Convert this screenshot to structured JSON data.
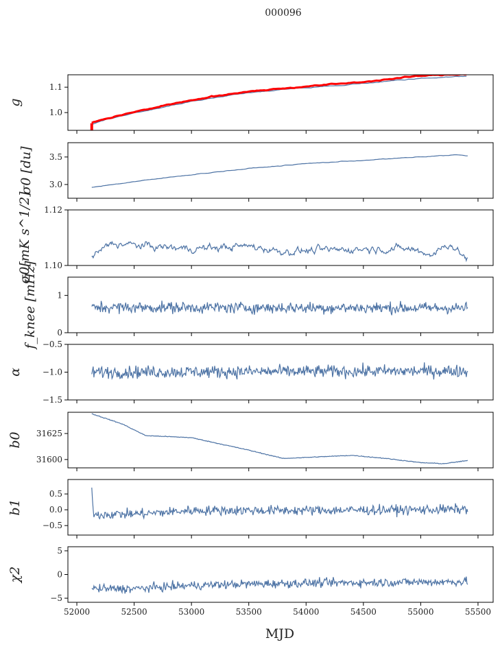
{
  "chart_data": {
    "type": "line",
    "title": "000096",
    "xlabel": "MJD",
    "xlim": [
      51922,
      55632
    ],
    "xticks": [
      52000,
      52500,
      53000,
      53500,
      54000,
      54500,
      55000,
      55500
    ],
    "xtick_labels": [
      "52000",
      "52500",
      "53000",
      "53500",
      "54000",
      "54500",
      "55000",
      "55500"
    ],
    "line_color": "#4c72a4",
    "highlight_color": "#ff0000",
    "panels": [
      {
        "ylabel": "g",
        "ylim": [
          0.93,
          1.149
        ],
        "yticks": [
          1.0,
          1.1
        ],
        "ytick_labels": [
          "1.0",
          "1.1"
        ],
        "series": [
          {
            "name": "g",
            "color": "#4c72a4",
            "noise": 0.0015,
            "trend": [
              [
                52130,
                0.952
              ],
              [
                52200,
                0.965
              ],
              [
                52500,
                0.998
              ],
              [
                53000,
                1.044
              ],
              [
                53500,
                1.079
              ],
              [
                54000,
                1.098
              ],
              [
                54500,
                1.115
              ],
              [
                55000,
                1.136
              ],
              [
                55400,
                1.143
              ]
            ]
          },
          {
            "name": "g-fit",
            "color": "#ff0000",
            "noise": 0.002,
            "trend": [
              [
                52130,
                0.958
              ],
              [
                52200,
                0.97
              ],
              [
                52500,
                1.003
              ],
              [
                53000,
                1.049
              ],
              [
                53500,
                1.084
              ],
              [
                54000,
                1.103
              ],
              [
                54500,
                1.121
              ],
              [
                55000,
                1.145
              ],
              [
                55400,
                1.152
              ]
            ]
          }
        ]
      },
      {
        "ylabel": "σ0 [du]",
        "ylim": [
          2.75,
          3.76
        ],
        "yticks": [
          3.0,
          3.5
        ],
        "ytick_labels": [
          "3.0",
          "3.5"
        ],
        "series": [
          {
            "name": "sigma0-du",
            "noise": 0.006,
            "trend": [
              [
                52130,
                2.95
              ],
              [
                52500,
                3.05
              ],
              [
                53000,
                3.18
              ],
              [
                53500,
                3.29
              ],
              [
                54000,
                3.38
              ],
              [
                54500,
                3.44
              ],
              [
                55000,
                3.5
              ],
              [
                55300,
                3.54
              ],
              [
                55410,
                3.52
              ]
            ]
          }
        ]
      },
      {
        "ylabel": "σ0[mK s^1/2]",
        "ylim": [
          1.1,
          1.12
        ],
        "yticks": [
          1.1,
          1.12
        ],
        "ytick_labels": [
          "1.10",
          "1.12"
        ],
        "series": [
          {
            "name": "sigma0-mK",
            "noise": 0.0012,
            "trend": [
              [
                52130,
                1.103
              ],
              [
                52300,
                1.108
              ],
              [
                52600,
                1.107
              ],
              [
                53000,
                1.106
              ],
              [
                53500,
                1.107
              ],
              [
                53800,
                1.105
              ],
              [
                54500,
                1.106
              ],
              [
                54900,
                1.106
              ],
              [
                55100,
                1.104
              ],
              [
                55250,
                1.108
              ],
              [
                55410,
                1.102
              ]
            ]
          }
        ]
      },
      {
        "ylabel": "f_knee [mHz]",
        "ylim": [
          0,
          1.49
        ],
        "yticks": [
          0,
          1
        ],
        "ytick_labels": [
          "0",
          "1"
        ],
        "series": [
          {
            "name": "fknee",
            "noise": 0.11,
            "trend": [
              [
                52130,
                0.68
              ],
              [
                55410,
                0.66
              ]
            ]
          }
        ]
      },
      {
        "ylabel": "α",
        "ylim": [
          -1.5,
          -0.5
        ],
        "yticks": [
          -1.5,
          -1.0,
          -0.5
        ],
        "ytick_labels": [
          "−1.5",
          "−1.0",
          "−0.5"
        ],
        "series": [
          {
            "name": "alpha",
            "noise": 0.08,
            "trend": [
              [
                52130,
                -1.0
              ],
              [
                55410,
                -0.98
              ]
            ]
          }
        ]
      },
      {
        "ylabel": "b0",
        "ylim": [
          31592,
          31645.4
        ],
        "yticks": [
          31600,
          31625
        ],
        "ytick_labels": [
          "31600",
          "31625"
        ],
        "series": [
          {
            "name": "b0",
            "noise": 0.25,
            "trend": [
              [
                52130,
                31644
              ],
              [
                52400,
                31634
              ],
              [
                52600,
                31623
              ],
              [
                53000,
                31621
              ],
              [
                53500,
                31609
              ],
              [
                53800,
                31601
              ],
              [
                54200,
                31603
              ],
              [
                54400,
                31604
              ],
              [
                54700,
                31601
              ],
              [
                55000,
                31597
              ],
              [
                55200,
                31596
              ],
              [
                55410,
                31599
              ]
            ]
          }
        ]
      },
      {
        "ylabel": "b1",
        "ylim": [
          -0.8,
          0.957
        ],
        "yticks": [
          -0.5,
          0.0,
          0.5
        ],
        "ytick_labels": [
          "−0.5",
          "0.0",
          "0.5"
        ],
        "series": [
          {
            "name": "b1",
            "noise": 0.11,
            "trend": [
              [
                52130,
                0.6
              ],
              [
                52150,
                -0.15
              ],
              [
                52600,
                -0.12
              ],
              [
                53000,
                -0.02
              ],
              [
                54000,
                -0.02
              ],
              [
                55000,
                0.0
              ],
              [
                55410,
                0.02
              ]
            ]
          }
        ]
      },
      {
        "ylabel": "χ2",
        "ylim": [
          -5.86,
          5.86
        ],
        "yticks": [
          -5,
          0,
          5
        ],
        "ytick_labels": [
          "−5",
          "0",
          "5"
        ],
        "series": [
          {
            "name": "chi2",
            "noise": 0.65,
            "trend": [
              [
                52130,
                -3.0
              ],
              [
                52500,
                -3.0
              ],
              [
                53000,
                -2.3
              ],
              [
                53500,
                -2.0
              ],
              [
                54000,
                -1.8
              ],
              [
                55410,
                -1.5
              ]
            ]
          }
        ]
      }
    ]
  }
}
